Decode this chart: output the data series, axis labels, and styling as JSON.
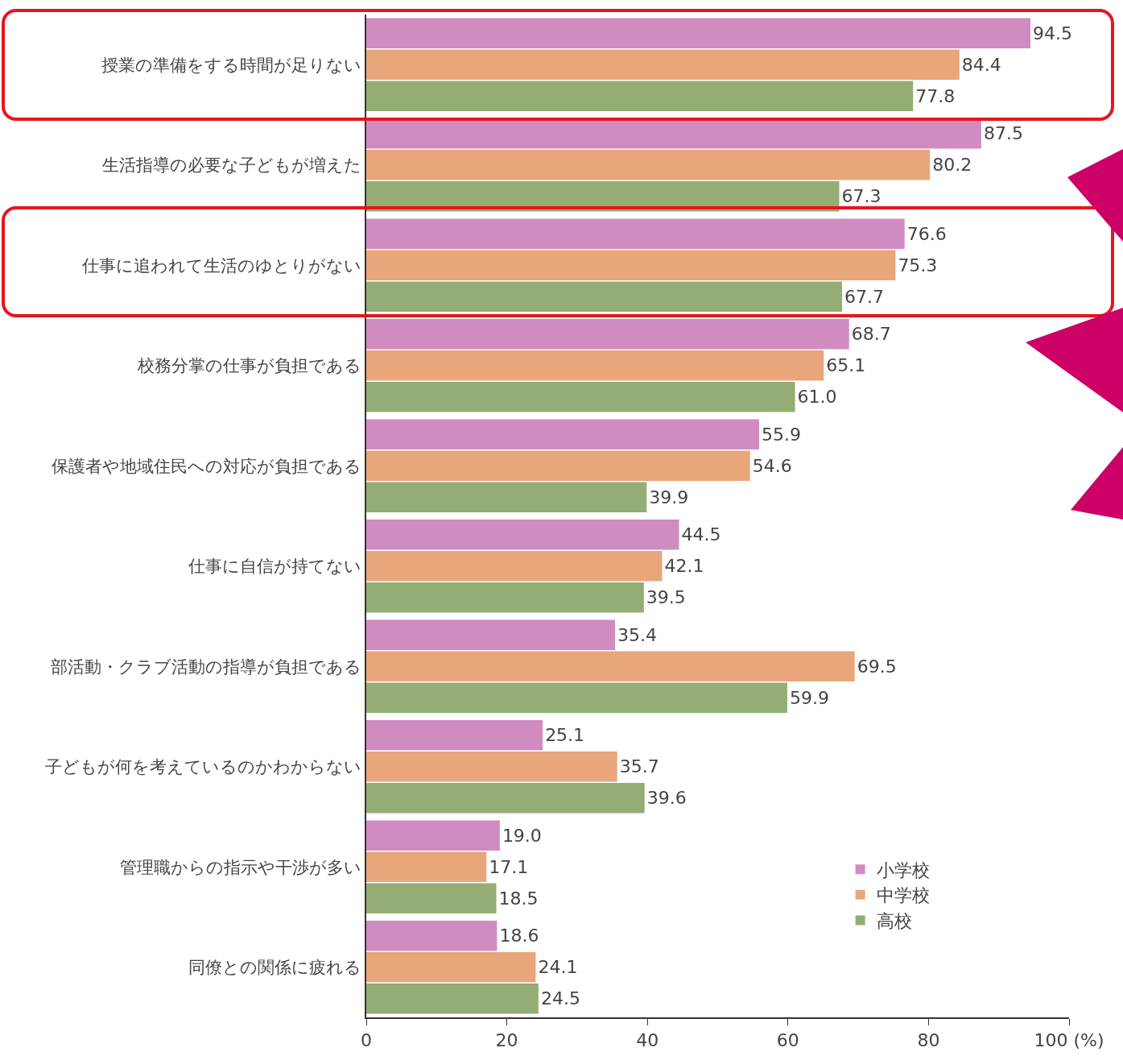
{
  "chart_data": {
    "type": "bar",
    "orientation": "horizontal",
    "categories": [
      "授業の準備をする時間が足りない",
      "生活指導の必要な子どもが増えた",
      "仕事に追われて生活のゆとりがない",
      "校務分掌の仕事が負担である",
      "保護者や地域住民への対応が負担である",
      "仕事に自信が持てない",
      "部活動・クラブ活動の指導が負担である",
      "子どもが何を考えているのかわからない",
      "管理職からの指示や干渉が多い",
      "同僚との関係に疲れる"
    ],
    "series": [
      {
        "name": "小学校",
        "color": "#d08cc0",
        "values": [
          94.5,
          87.5,
          76.6,
          68.7,
          55.9,
          44.5,
          35.4,
          25.1,
          19.0,
          18.6
        ],
        "value_labels": [
          "94.5",
          "87.5",
          "76.6",
          "68.7",
          "55.9",
          "44.5",
          "35.4",
          "25.1",
          "19.0",
          "18.6"
        ]
      },
      {
        "name": "中学校",
        "color": "#e8a67a",
        "values": [
          84.4,
          80.2,
          75.3,
          65.1,
          54.6,
          42.1,
          69.5,
          35.7,
          17.1,
          24.1
        ],
        "value_labels": [
          "84.4",
          "80.2",
          "75.3",
          "65.1",
          "54.6",
          "42.1",
          "69.5",
          "35.7",
          "17.1",
          "24.1"
        ]
      },
      {
        "name": "高校",
        "color": "#93ad74",
        "values": [
          77.8,
          67.3,
          67.7,
          61.0,
          39.9,
          39.5,
          59.9,
          39.6,
          18.5,
          24.5
        ],
        "value_labels": [
          "77.8",
          "67.3",
          "67.7",
          "61.0",
          "39.9",
          "39.5",
          "59.9",
          "39.6",
          "18.5",
          "24.5"
        ]
      }
    ],
    "xlim": [
      0,
      100
    ],
    "xticks": [
      0,
      20,
      40,
      60,
      80,
      {
        "value": 100,
        "label": "100 (%)"
      }
    ],
    "grid": false,
    "legend": "bottom right"
  }
}
